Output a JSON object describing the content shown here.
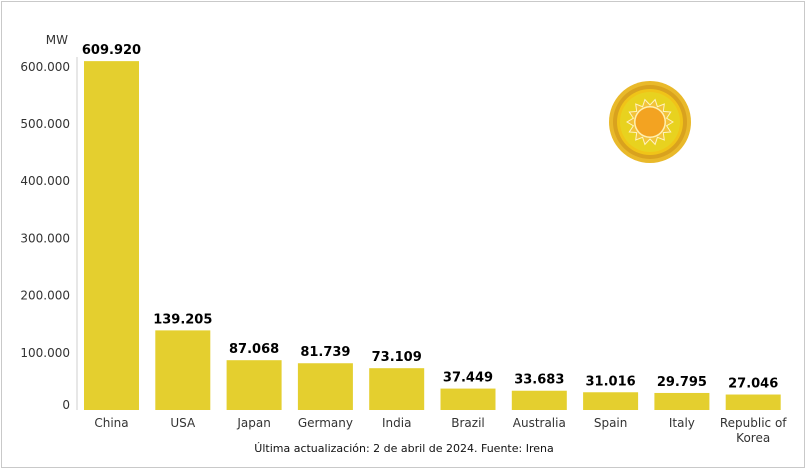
{
  "chart_data": {
    "type": "bar",
    "title": "",
    "ylabel": "MW",
    "xlabel": "",
    "categories": [
      "China",
      "USA",
      "Japan",
      "Germany",
      "India",
      "Brazil",
      "Australia",
      "Spain",
      "Italy",
      "Republic of Korea"
    ],
    "category_lines": [
      [
        "China"
      ],
      [
        "USA"
      ],
      [
        "Japan"
      ],
      [
        "Germany"
      ],
      [
        "India"
      ],
      [
        "Brazil"
      ],
      [
        "Australia"
      ],
      [
        "Spain"
      ],
      [
        "Italy"
      ],
      [
        "Republic of",
        "Korea"
      ]
    ],
    "values": [
      609920,
      139205,
      87068,
      81739,
      73109,
      37449,
      33683,
      31016,
      29795,
      27046
    ],
    "value_labels": [
      "609.920",
      "139.205",
      "87.068",
      "81.739",
      "73.109",
      "37.449",
      "33.683",
      "31.016",
      "29.795",
      "27.046"
    ],
    "yticks": [
      0,
      100000,
      200000,
      300000,
      400000,
      500000,
      600000
    ],
    "ytick_labels": [
      "0",
      "100.000",
      "200.000",
      "300.000",
      "400.000",
      "500.000",
      "600.000"
    ],
    "ylim": [
      0,
      610000
    ],
    "grid": false,
    "bar_color": "#e4cf2f",
    "footnote": "Última actualización: 2 de abril de 2024. Fuente: Irena",
    "icon": "sun-icon"
  }
}
